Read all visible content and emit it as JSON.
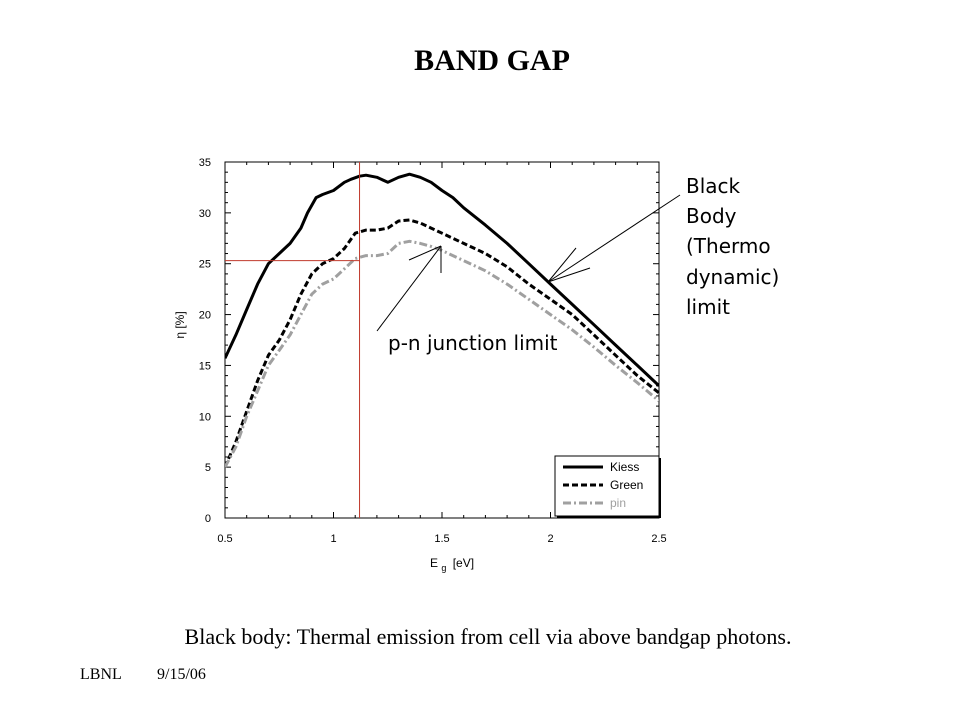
{
  "slide": {
    "title": "BAND GAP",
    "caption": "Black body:  Thermal emission from cell via above bandgap photons.",
    "footer_org": "LBNL",
    "footer_date": "9/15/06"
  },
  "annotations": {
    "blackbody": [
      "Black",
      "Body",
      "(Thermo",
      "dynamic)",
      "limit"
    ],
    "pn_junction": "p-n junction limit"
  },
  "chart_data": {
    "type": "line",
    "xlabel_main": "E",
    "xlabel_sub": "g",
    "xlabel_unit": "[eV]",
    "ylabel": "η [%]",
    "xlim": [
      0.5,
      2.5
    ],
    "ylim": [
      0,
      35
    ],
    "x_ticks": [
      "0.5",
      "1",
      "1.5",
      "2",
      "2.5"
    ],
    "y_ticks": [
      "0",
      "5",
      "10",
      "15",
      "20",
      "25",
      "30",
      "35"
    ],
    "grid": false,
    "legend_position": "bottom-right",
    "reference_point": {
      "x": 1.12,
      "y": 25.3
    },
    "colors": {
      "kiess": "#000000",
      "green": "#000000",
      "pin": "#a0a0a0",
      "reference": "#c0392b"
    },
    "series": [
      {
        "name": "Kiess",
        "style": "solid",
        "x": [
          0.5,
          0.55,
          0.6,
          0.65,
          0.7,
          0.75,
          0.8,
          0.85,
          0.88,
          0.92,
          0.95,
          1.0,
          1.05,
          1.08,
          1.12,
          1.15,
          1.2,
          1.25,
          1.3,
          1.35,
          1.4,
          1.45,
          1.5,
          1.55,
          1.6,
          1.7,
          1.8,
          1.9,
          2.0,
          2.1,
          2.2,
          2.3,
          2.4,
          2.5
        ],
        "y": [
          15.7,
          18.0,
          20.5,
          23.0,
          25.0,
          26.0,
          27.0,
          28.5,
          30.0,
          31.5,
          31.8,
          32.2,
          33.0,
          33.3,
          33.6,
          33.7,
          33.5,
          33.0,
          33.5,
          33.8,
          33.5,
          33.0,
          32.2,
          31.5,
          30.5,
          28.8,
          27.0,
          25.0,
          23.0,
          21.0,
          19.0,
          17.0,
          15.0,
          13.0
        ]
      },
      {
        "name": "Green",
        "style": "dashed",
        "x": [
          0.5,
          0.55,
          0.6,
          0.65,
          0.7,
          0.75,
          0.8,
          0.85,
          0.9,
          0.95,
          1.0,
          1.05,
          1.1,
          1.15,
          1.2,
          1.25,
          1.3,
          1.35,
          1.4,
          1.45,
          1.5,
          1.6,
          1.7,
          1.8,
          1.9,
          2.0,
          2.1,
          2.2,
          2.3,
          2.4,
          2.5
        ],
        "y": [
          5.0,
          7.5,
          10.5,
          13.5,
          16.0,
          17.5,
          19.5,
          22.0,
          24.0,
          25.0,
          25.5,
          26.5,
          28.0,
          28.3,
          28.3,
          28.5,
          29.2,
          29.3,
          29.0,
          28.5,
          28.0,
          27.0,
          26.0,
          24.7,
          23.0,
          21.5,
          20.0,
          18.0,
          16.0,
          14.0,
          12.3
        ]
      },
      {
        "name": "pin",
        "style": "dash-dot",
        "x": [
          0.5,
          0.55,
          0.6,
          0.65,
          0.7,
          0.75,
          0.8,
          0.85,
          0.9,
          0.95,
          1.0,
          1.05,
          1.1,
          1.15,
          1.2,
          1.25,
          1.3,
          1.35,
          1.4,
          1.45,
          1.5,
          1.6,
          1.7,
          1.8,
          1.9,
          2.0,
          2.1,
          2.2,
          2.3,
          2.4,
          2.5
        ],
        "y": [
          5.0,
          7.0,
          10.0,
          12.5,
          15.0,
          16.5,
          18.0,
          20.0,
          22.0,
          23.0,
          23.5,
          24.5,
          25.5,
          25.8,
          25.8,
          26.0,
          27.0,
          27.2,
          27.0,
          26.7,
          26.3,
          25.3,
          24.3,
          23.0,
          21.5,
          20.0,
          18.5,
          16.8,
          15.0,
          13.3,
          11.5
        ]
      }
    ]
  }
}
